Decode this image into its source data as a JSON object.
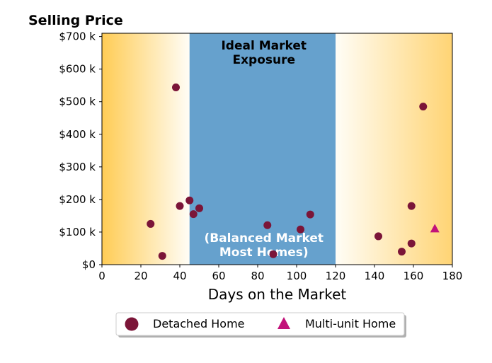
{
  "chart_data": {
    "type": "scatter",
    "title": "Selling Price",
    "xlabel": "Days on the Market",
    "ylabel": "",
    "xlim": [
      0,
      180
    ],
    "ylim": [
      0,
      710000
    ],
    "x_ticks": [
      0,
      20,
      40,
      60,
      80,
      100,
      120,
      140,
      160,
      180
    ],
    "x_tick_labels": [
      "0",
      "20",
      "40",
      "60",
      "80",
      "100",
      "120",
      "140",
      "160",
      "180"
    ],
    "y_ticks": [
      0,
      100000,
      200000,
      300000,
      400000,
      500000,
      600000,
      700000
    ],
    "y_tick_labels": [
      "$0",
      "$100 k",
      "$200 k",
      "$300 k",
      "$400 k",
      "$500 k",
      "$600 k",
      "$700 k"
    ],
    "grid": false,
    "legend_position": "bottom",
    "regions": [
      {
        "x_range": [
          0,
          45
        ],
        "fill": "gradient",
        "color_outer": "#ffcc55",
        "color_inner": "#fffdf6"
      },
      {
        "x_range": [
          45,
          120
        ],
        "fill": "solid",
        "color": "#66a1cd"
      },
      {
        "x_range": [
          120,
          180
        ],
        "fill": "gradient",
        "color_outer": "#ffd474",
        "color_inner": "#fffdf6"
      }
    ],
    "annotations": [
      {
        "lines": [
          "Ideal Market",
          "Exposure"
        ],
        "x": 81,
        "y": 660000,
        "style": "dark"
      },
      {
        "lines": [
          "(Balanced Market",
          "Most Homes)"
        ],
        "x": 81,
        "y": 70000,
        "style": "light"
      }
    ],
    "series": [
      {
        "name": "Detached Home",
        "marker": "circle",
        "color": "#7b1538",
        "points": [
          {
            "x": 25,
            "y": 125000
          },
          {
            "x": 31,
            "y": 27000
          },
          {
            "x": 38,
            "y": 544000
          },
          {
            "x": 40,
            "y": 180000
          },
          {
            "x": 45,
            "y": 197000
          },
          {
            "x": 47,
            "y": 155000
          },
          {
            "x": 50,
            "y": 173000
          },
          {
            "x": 85,
            "y": 121000
          },
          {
            "x": 88,
            "y": 32000
          },
          {
            "x": 102,
            "y": 108000
          },
          {
            "x": 107,
            "y": 154000
          },
          {
            "x": 142,
            "y": 87000
          },
          {
            "x": 154,
            "y": 40000
          },
          {
            "x": 159,
            "y": 180000
          },
          {
            "x": 159,
            "y": 65000
          },
          {
            "x": 165,
            "y": 485000
          }
        ]
      },
      {
        "name": "Multi-unit Home",
        "marker": "triangle",
        "color": "#c2127a",
        "points": [
          {
            "x": 171,
            "y": 110000
          }
        ]
      }
    ]
  }
}
